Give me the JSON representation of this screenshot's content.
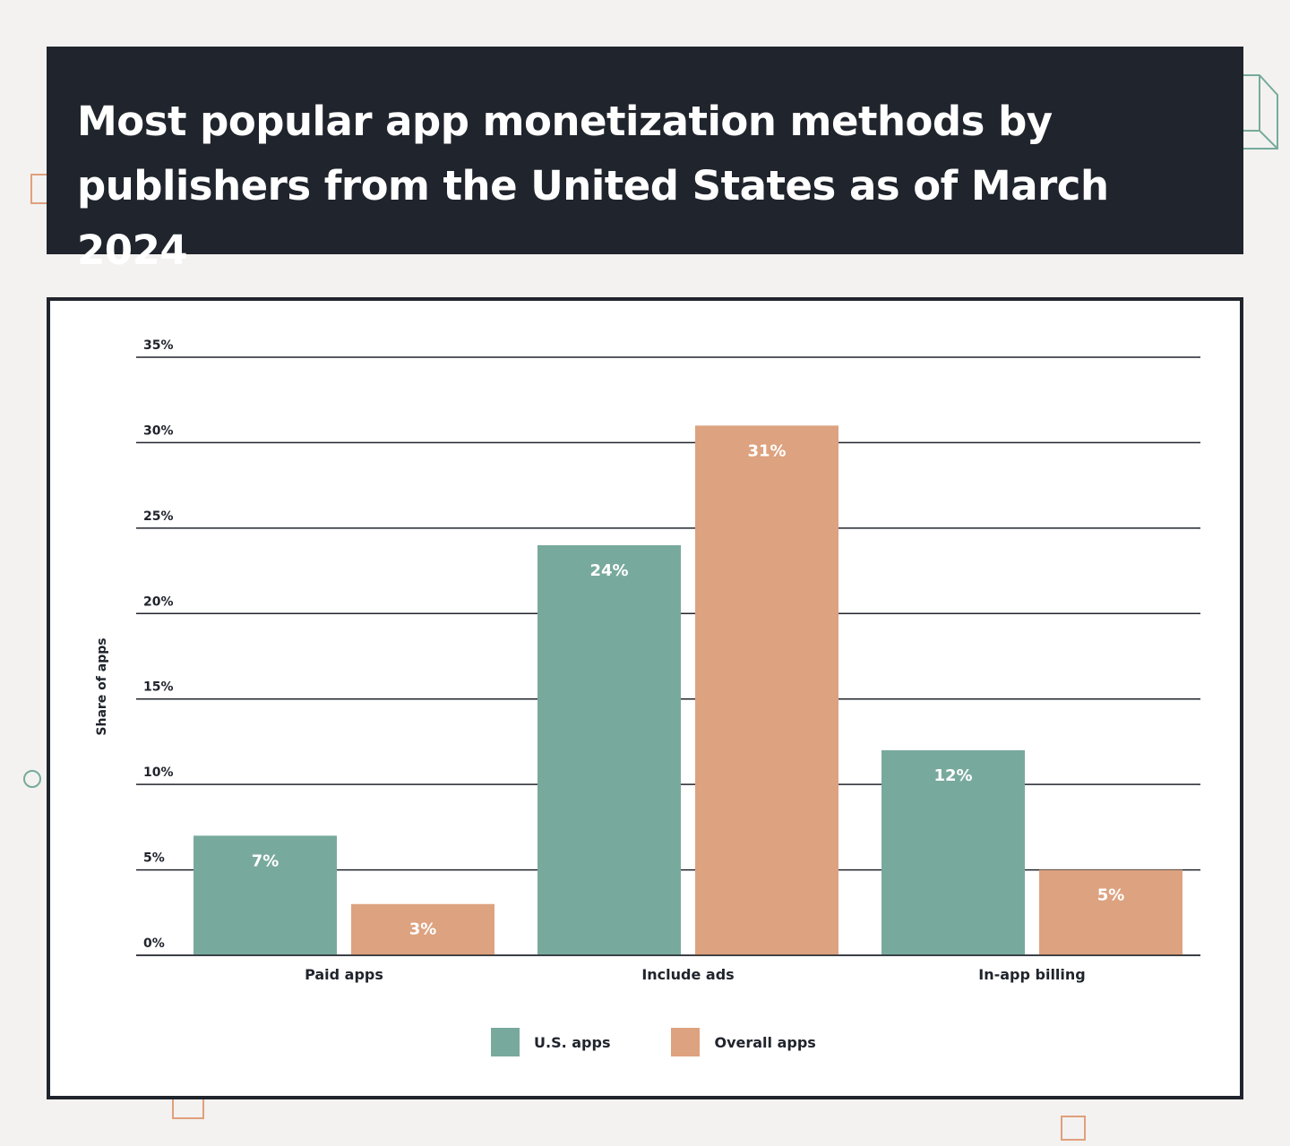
{
  "header": {
    "title": "Most popular app monetization methods by publishers from the United States as of March 2024"
  },
  "colors": {
    "us_apps": "#78a99d",
    "overall_apps": "#dda27f",
    "dark": "#20242c"
  },
  "chart_data": {
    "type": "bar",
    "title": "Most popular app monetization methods by publishers from the United States as of March 2024",
    "xlabel": "",
    "ylabel": "Share of apps",
    "ylim": [
      0,
      35
    ],
    "yticks": [
      "0%",
      "5%",
      "10%",
      "15%",
      "20%",
      "25%",
      "30%",
      "35%"
    ],
    "ytick_values": [
      0,
      5,
      10,
      15,
      20,
      25,
      30,
      35
    ],
    "grid": true,
    "legend_position": "bottom",
    "categories": [
      "Paid apps",
      "Include ads",
      "In-app billing"
    ],
    "series": [
      {
        "name": "U.S. apps",
        "values": [
          7,
          24,
          12
        ],
        "labels": [
          "7%",
          "24%",
          "12%"
        ],
        "color": "#78a99d"
      },
      {
        "name": "Overall apps",
        "values": [
          3,
          31,
          5
        ],
        "labels": [
          "3%",
          "31%",
          "5%"
        ],
        "color": "#dda27f"
      }
    ]
  }
}
